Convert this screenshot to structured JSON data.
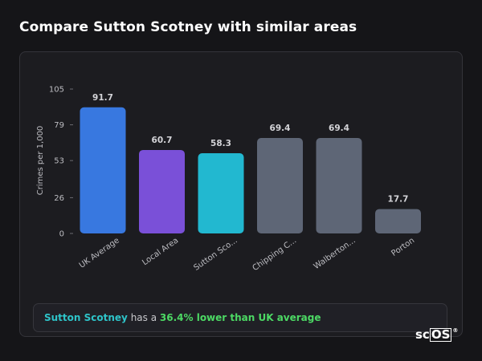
{
  "page": {
    "title": "Compare Sutton Scotney with similar areas"
  },
  "chart_data": {
    "type": "bar",
    "title": "",
    "xlabel": "",
    "ylabel": "Crimes per 1,000",
    "ylim": [
      0,
      105
    ],
    "yticks": [
      0,
      26,
      53,
      79,
      105
    ],
    "grid": false,
    "categories": [
      "UK Average",
      "Local Area",
      "Sutton Sco...",
      "Chipping C...",
      "Walberton...",
      "Porton"
    ],
    "values": [
      91.7,
      60.7,
      58.3,
      69.4,
      69.4,
      17.7
    ],
    "value_labels": [
      "91.7",
      "60.7",
      "58.3",
      "69.4",
      "69.4",
      "17.7"
    ],
    "colors": [
      "#3878e0",
      "#7a50d8",
      "#22b8d0",
      "#5e6676",
      "#5e6676",
      "#5e6676"
    ]
  },
  "summary": {
    "area_name": "Sutton Scotney",
    "middle_text": " has a ",
    "highlight": "36.4% lower than UK average"
  },
  "logo": {
    "prefix": "sc",
    "boxed": "OS",
    "mark": "®"
  }
}
